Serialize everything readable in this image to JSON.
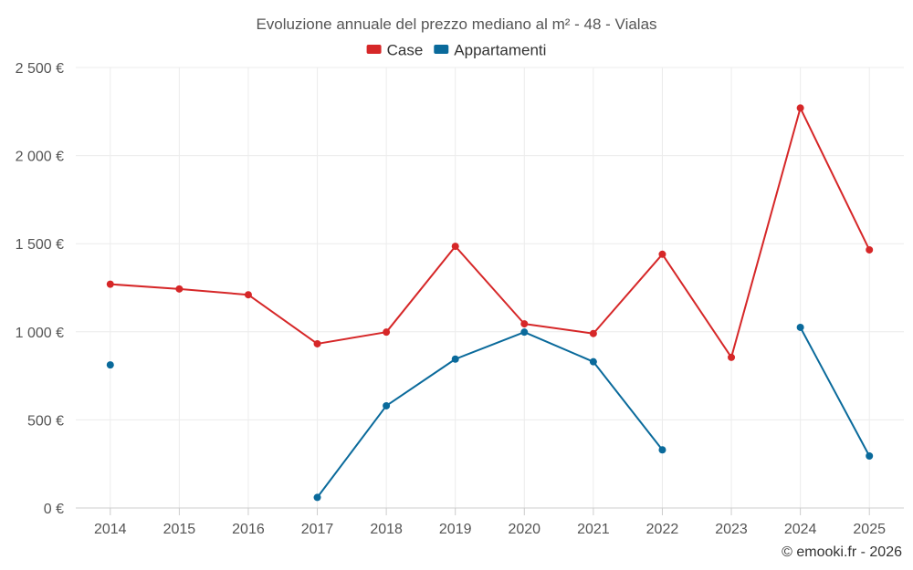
{
  "chart_data": {
    "type": "line",
    "title": "Evoluzione annuale del prezzo mediano al m² - 48 - Vialas",
    "categories": [
      "2014",
      "2015",
      "2016",
      "2017",
      "2018",
      "2019",
      "2020",
      "2021",
      "2022",
      "2023",
      "2024",
      "2025"
    ],
    "series": [
      {
        "name": "Case",
        "color": "#d62728",
        "values": [
          1270,
          1243,
          1210,
          932,
          998,
          1485,
          1045,
          990,
          1440,
          855,
          2270,
          1465
        ]
      },
      {
        "name": "Appartamenti",
        "color": "#0a6a9b",
        "values": [
          812,
          null,
          null,
          60,
          580,
          845,
          998,
          830,
          330,
          null,
          1025,
          295
        ]
      }
    ],
    "ylim": [
      0,
      2500
    ],
    "yticks": [
      0,
      500,
      1000,
      1500,
      2000,
      2500
    ],
    "ytick_labels": [
      "0 €",
      "500 €",
      "1 000 €",
      "1 500 €",
      "2 000 €",
      "2 500 €"
    ],
    "legend": "top-center",
    "grid": true
  },
  "credit": "© emooki.fr - 2026"
}
